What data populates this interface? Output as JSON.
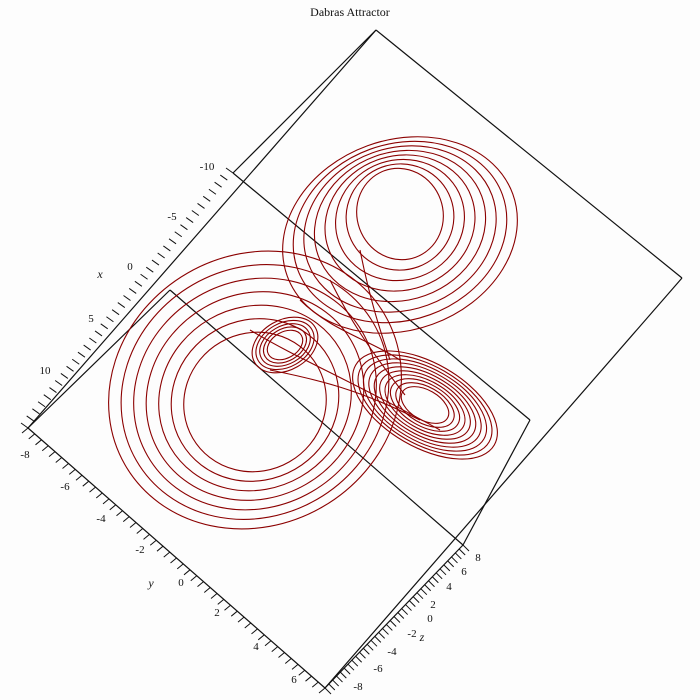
{
  "title": "Dabras Attractor",
  "chart_data": {
    "type": "line",
    "title": "Dabras Attractor",
    "dimensions": "3d",
    "color": "#8b0000",
    "axes": {
      "x": {
        "label": "x",
        "ticks": [
          "-10",
          "-5",
          "0",
          "5",
          "10"
        ]
      },
      "y": {
        "label": "y",
        "ticks": [
          "-8",
          "-6",
          "-4",
          "-2",
          "0",
          "2",
          "4",
          "6"
        ]
      },
      "z": {
        "label": "z",
        "ticks": [
          "-8",
          "-6",
          "-4",
          "-2",
          "0",
          "2",
          "4",
          "6",
          "8"
        ]
      }
    }
  }
}
